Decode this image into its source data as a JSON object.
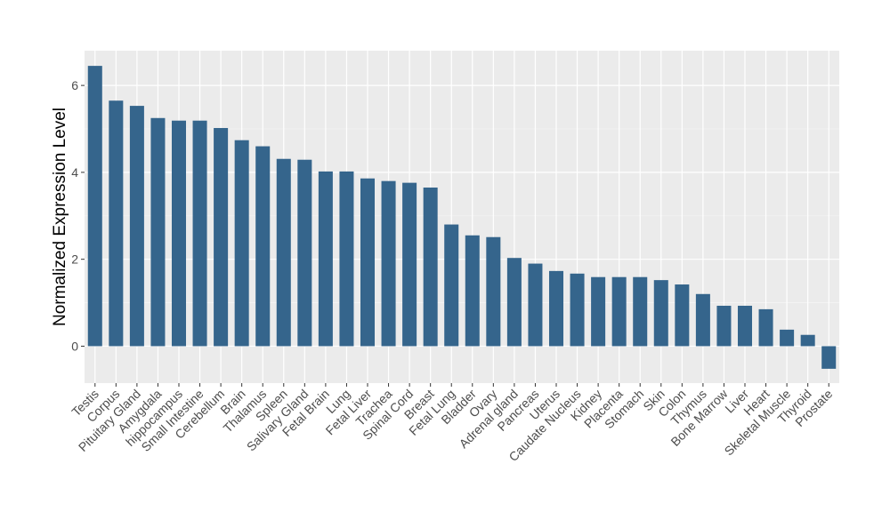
{
  "chart_data": {
    "type": "bar",
    "title": "",
    "xlabel": "",
    "ylabel": "Normalized Expression Level",
    "ylim": [
      -0.85,
      6.8
    ],
    "yticks": [
      0,
      2,
      4,
      6
    ],
    "grid": true,
    "legend": "none",
    "categories": [
      "Testis",
      "Corpus",
      "Pituitary Gland",
      "Amygdala",
      "hippocampus",
      "Small Intestine",
      "Cerebellum",
      "Brain",
      "Thalamus",
      "Spleen",
      "Salivary Gland",
      "Fetal Brain",
      "Lung",
      "Fetal Liver",
      "Trachea",
      "Spinal Cord",
      "Breast",
      "Fetal Lung",
      "Bladder",
      "Ovary",
      "Adrenal gland",
      "Pancreas",
      "Uterus",
      "Caudate Nucleus",
      "Kidney",
      "Placenta",
      "Stomach",
      "Skin",
      "Colon",
      "Thymus",
      "Bone Marrow",
      "Liver",
      "Heart",
      "Skeletal Muscle",
      "Thyroid",
      "Prostate"
    ],
    "values": [
      6.45,
      5.65,
      5.53,
      5.25,
      5.19,
      5.19,
      5.02,
      4.74,
      4.6,
      4.31,
      4.29,
      4.02,
      4.02,
      3.86,
      3.8,
      3.76,
      3.65,
      2.8,
      2.55,
      2.51,
      2.03,
      1.9,
      1.73,
      1.67,
      1.59,
      1.59,
      1.59,
      1.52,
      1.42,
      1.2,
      0.93,
      0.93,
      0.85,
      0.38,
      0.26,
      -0.52
    ],
    "colors": {
      "bar": "#35658C",
      "panel": "#EBEBEB",
      "grid_major": "#FFFFFF",
      "grid_minor": "#F4F4F4",
      "text": "#4D4D4D",
      "axis_title": "#000000"
    }
  }
}
